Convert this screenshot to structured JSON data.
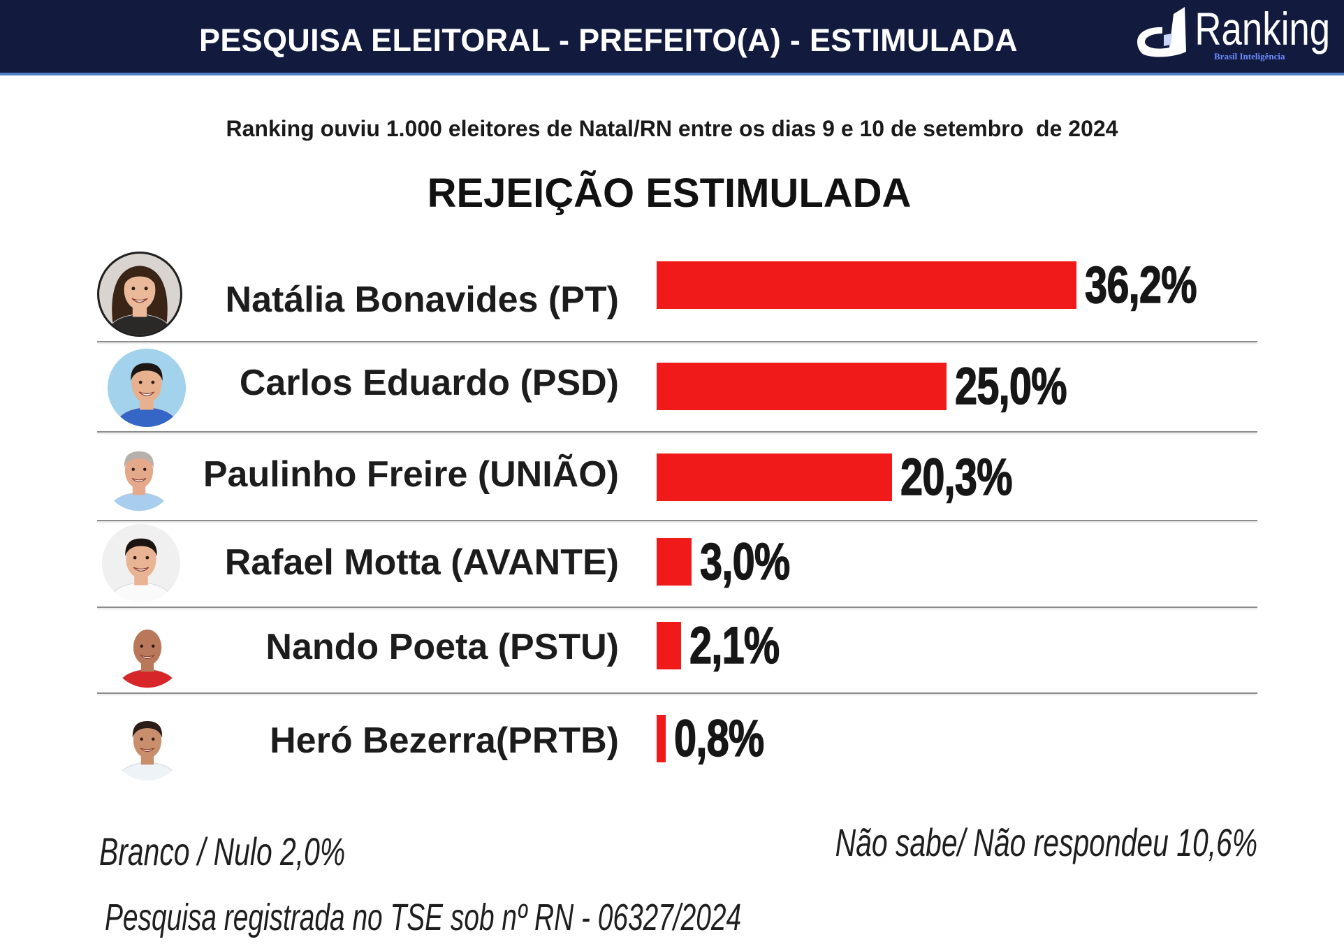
{
  "header": {
    "title": "PESQUISA ELEITORAL - PREFEITO(A) - ESTIMULADA",
    "background_color": "#121a3e",
    "accent_line_color": "#4f7fc4",
    "logo": {
      "icon": "ranking-logo-icon",
      "name": "Ranking",
      "tagline": "Brasil Inteligência"
    }
  },
  "subtitle": "Ranking ouviu 1.000 eleitores de Natal/RN entre os dias 9 e 10 de setembro  de 2024",
  "chart_data": {
    "type": "bar",
    "orientation": "horizontal",
    "title": "REJEIÇÃO ESTIMULADA",
    "xlabel": "",
    "ylabel": "",
    "categories": [
      "Natália Bonavides (PT)",
      "Carlos Eduardo (PSD)",
      "Paulinho Freire (UNIÃO)",
      "Rafael Motta (AVANTE)",
      "Nando Poeta (PSTU)",
      "Heró Bezerra(PRTB)"
    ],
    "values": [
      36.2,
      25.0,
      20.3,
      3.0,
      2.1,
      0.8
    ],
    "value_labels": [
      "36,2%",
      "25,0%",
      "20,3%",
      "3,0%",
      "2,1%",
      "0,8%"
    ],
    "bar_color": "#f11a1a",
    "grid": false,
    "legend": "none"
  },
  "footer": {
    "blank_null": "Branco / Nulo 2,0%",
    "undecided": "Não sabe/ Não respondeu 10,6%",
    "registration": "Pesquisa registrada no TSE sob nº RN - 06327/2024"
  }
}
